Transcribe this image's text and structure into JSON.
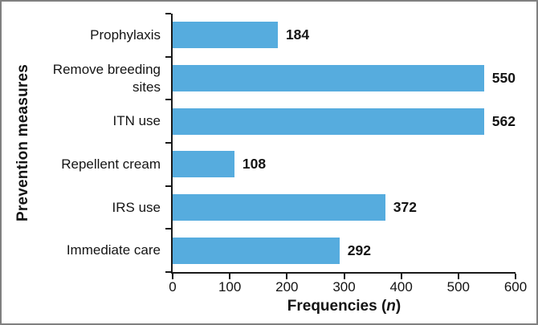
{
  "chart_data": {
    "type": "bar",
    "orientation": "horizontal",
    "title": "",
    "categories": [
      "Prophylaxis",
      "Remove breeding sites",
      "ITN use",
      "Repellent cream",
      "IRS use",
      "Immediate care"
    ],
    "values": [
      184,
      550,
      562,
      108,
      372,
      292
    ],
    "xlabel": "Frequencies (n)",
    "xlabel_parts": {
      "pre": "Frequencies (",
      "italic": "n",
      "post": ")"
    },
    "ylabel": "Prevention measures",
    "xlim": [
      0,
      600
    ],
    "xticks": [
      0,
      100,
      200,
      300,
      400,
      500,
      600
    ],
    "grid": false,
    "legend": "none",
    "data_labels": true,
    "bar_color": "#56ACDE",
    "axis_color": "#1a1a1a",
    "text_color": "#141414",
    "frame_border_color": "#808080"
  }
}
